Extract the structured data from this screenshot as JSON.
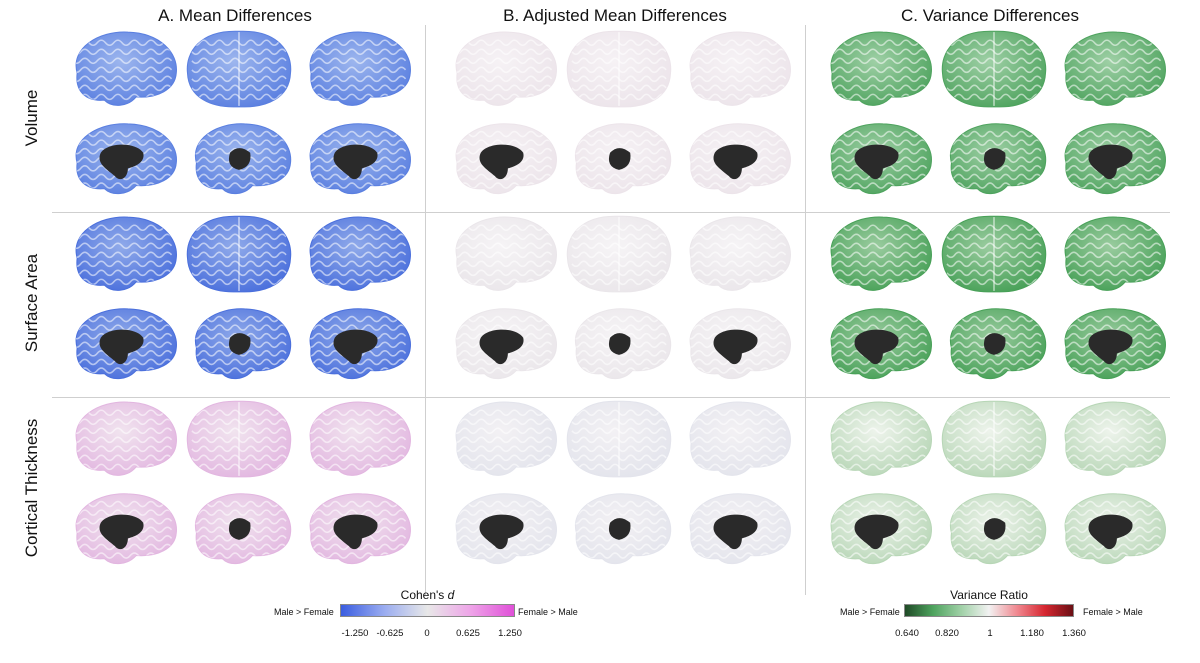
{
  "columns": [
    {
      "title": "A. Mean Differences"
    },
    {
      "title": "B. Adjusted Mean Differences"
    },
    {
      "title": "C. Variance Differences"
    }
  ],
  "rows": [
    {
      "label": "Volume"
    },
    {
      "label": "Surface Area"
    },
    {
      "label": "Cortical Thickness"
    }
  ],
  "colors": {
    "cohens_neg": "#3a5de0",
    "cohens_mid": "#e8e8e8",
    "cohens_pos": "#e050d8",
    "var_low": "#1f5a2a",
    "var_mid": "#f2f2f2",
    "var_high": "#6a0f14",
    "subcortical": "#2a2a2a"
  },
  "legend_cohens": {
    "title_prefix": "Cohen's",
    "title_italic": "d",
    "left": "Male > Female",
    "right": "Female > Male",
    "ticks": [
      "-1.250",
      "-0.625",
      "0",
      "0.625",
      "1.250"
    ]
  },
  "legend_variance": {
    "title": "Variance Ratio",
    "left": "Male > Female",
    "right": "Female > Male",
    "ticks": [
      "0.640",
      "0.820",
      "1",
      "1.180",
      "1.360"
    ]
  },
  "panel_colors": {
    "A": {
      "Volume": {
        "base": "#5a7fe0",
        "hi": "#9db6ee"
      },
      "Surface Area": {
        "base": "#4a6fdc",
        "hi": "#90aaea"
      },
      "Cortical Thickness": {
        "base": "#e2b6e0",
        "hi": "#f1e4ef"
      }
    },
    "B": {
      "Volume": {
        "base": "#ece4ea",
        "hi": "#f6f2f5"
      },
      "Surface Area": {
        "base": "#eae6ea",
        "hi": "#f6f4f6"
      },
      "Cortical Thickness": {
        "base": "#e3e4ec",
        "hi": "#f3f1f4"
      }
    },
    "C": {
      "Volume": {
        "base": "#4ea35e",
        "hi": "#9fd0a6"
      },
      "Surface Area": {
        "base": "#47a057",
        "hi": "#9acc9f"
      },
      "Cortical Thickness": {
        "base": "#b7d6b6",
        "hi": "#eef4ec"
      }
    }
  }
}
